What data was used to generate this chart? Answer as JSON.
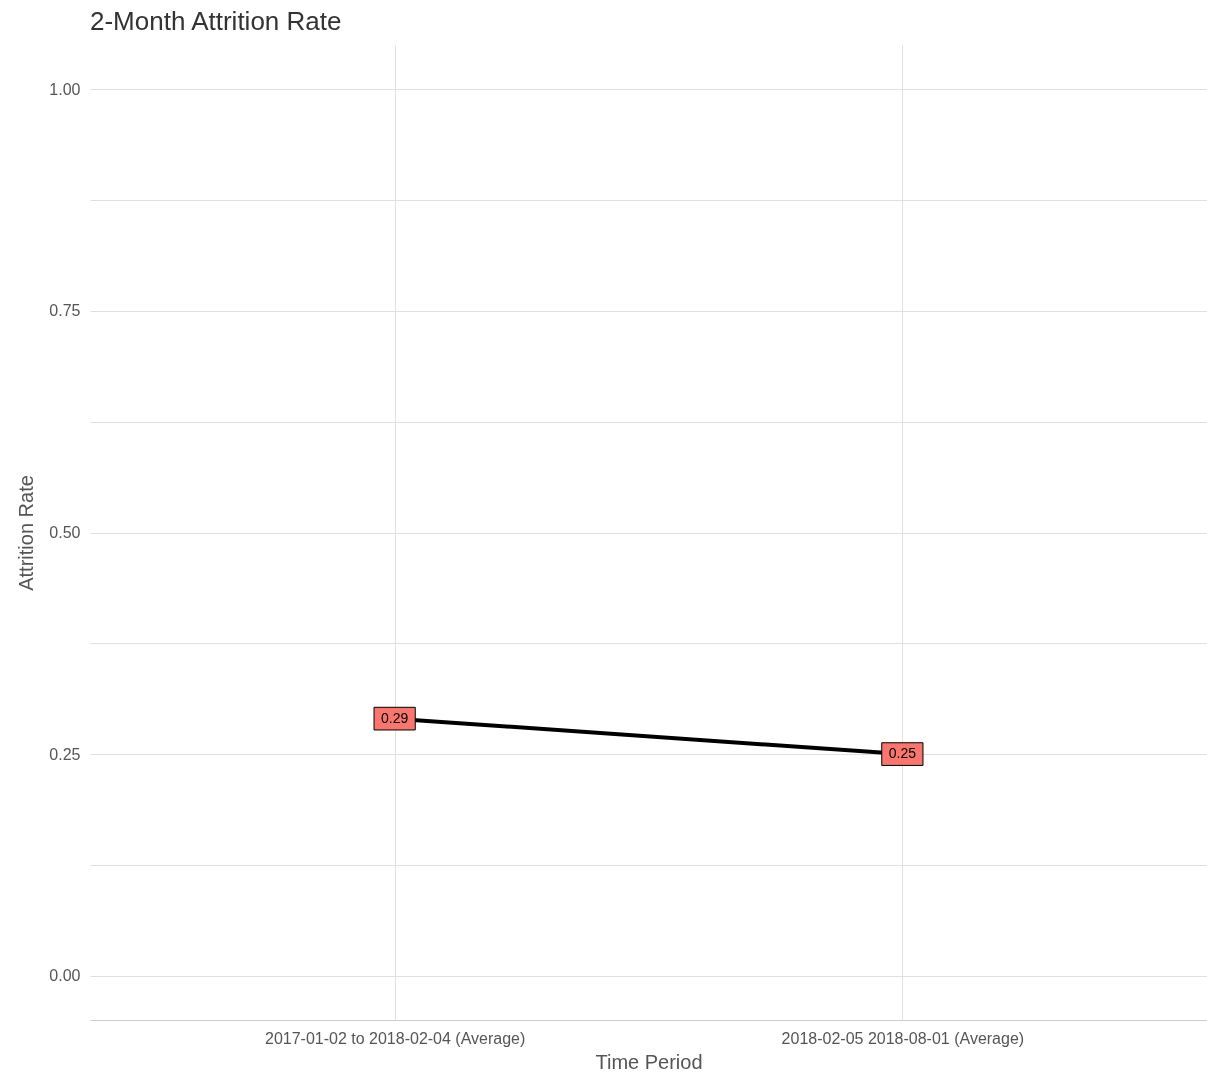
{
  "chart_data": {
    "type": "line",
    "title": "2-Month Attrition Rate",
    "xlabel": "Time Period",
    "ylabel": "Attrition Rate",
    "categories": [
      "2017-01-02 to 2018-02-04 (Average)",
      "2018-02-05 2018-08-01 (Average)"
    ],
    "series": [
      {
        "color": "#000000",
        "values": [
          0.29,
          0.25
        ]
      }
    ],
    "ylim": [
      -0.05,
      1.05
    ],
    "yticks": [
      {
        "value": 0,
        "label": "0.00"
      },
      {
        "value": 0.125,
        "label": null
      },
      {
        "value": 0.25,
        "label": "0.25"
      },
      {
        "value": 0.375,
        "label": null
      },
      {
        "value": 0.5,
        "label": "0.50"
      },
      {
        "value": 0.625,
        "label": null
      },
      {
        "value": 0.75,
        "label": "0.75"
      },
      {
        "value": 0.875,
        "label": null
      },
      {
        "value": 1,
        "label": "1.00"
      }
    ],
    "grid": true,
    "data_labels": true,
    "marker": "square",
    "line_style": "solid"
  }
}
